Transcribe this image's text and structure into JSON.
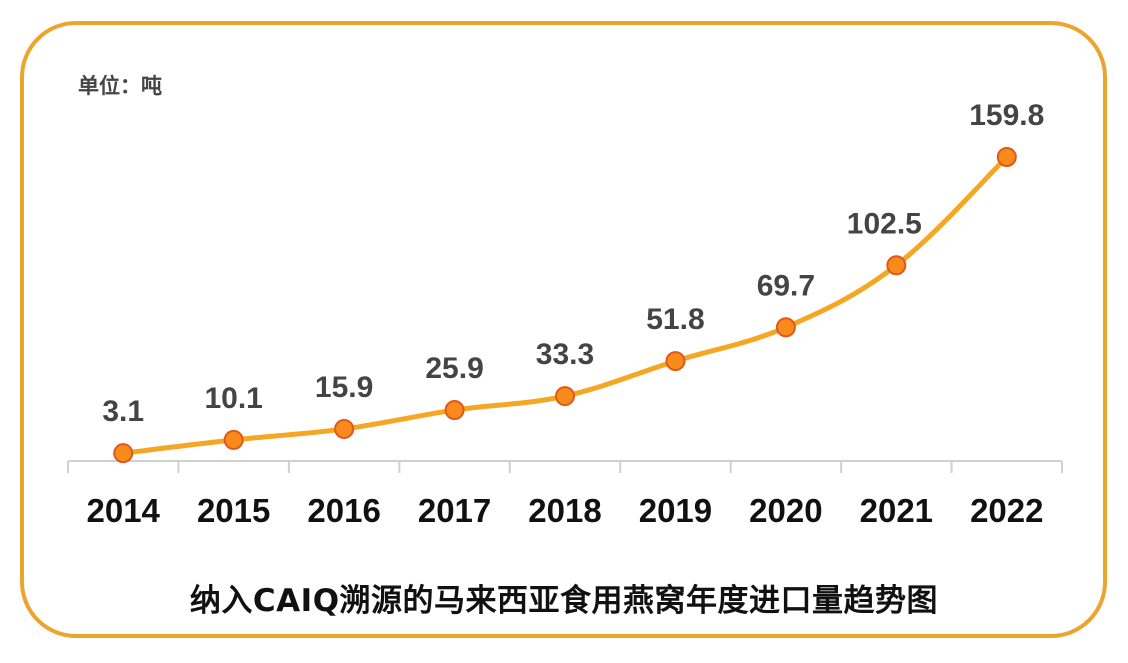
{
  "chart_data": {
    "type": "line",
    "title": "纳入CAIQ溯源的马来西亚食用燕窝年度进口量趋势图",
    "unit_label": "单位：吨",
    "categories": [
      "2014",
      "2015",
      "2016",
      "2017",
      "2018",
      "2019",
      "2020",
      "2021",
      "2022"
    ],
    "values": [
      3.1,
      10.1,
      15.9,
      25.9,
      33.3,
      51.8,
      69.7,
      102.5,
      159.8
    ],
    "data_labels": [
      "3.1",
      "10.1",
      "15.9",
      "25.9",
      "33.3",
      "51.8",
      "69.7",
      "102.5",
      "159.8"
    ],
    "ylim": [
      0,
      160
    ],
    "grid": false,
    "legend": "none",
    "colors": {
      "line": "#f5a623",
      "marker_fill": "#f98a1c",
      "marker_edge": "#e2581a",
      "frame": "#eba52e",
      "axis": "#d0d0d0"
    }
  }
}
